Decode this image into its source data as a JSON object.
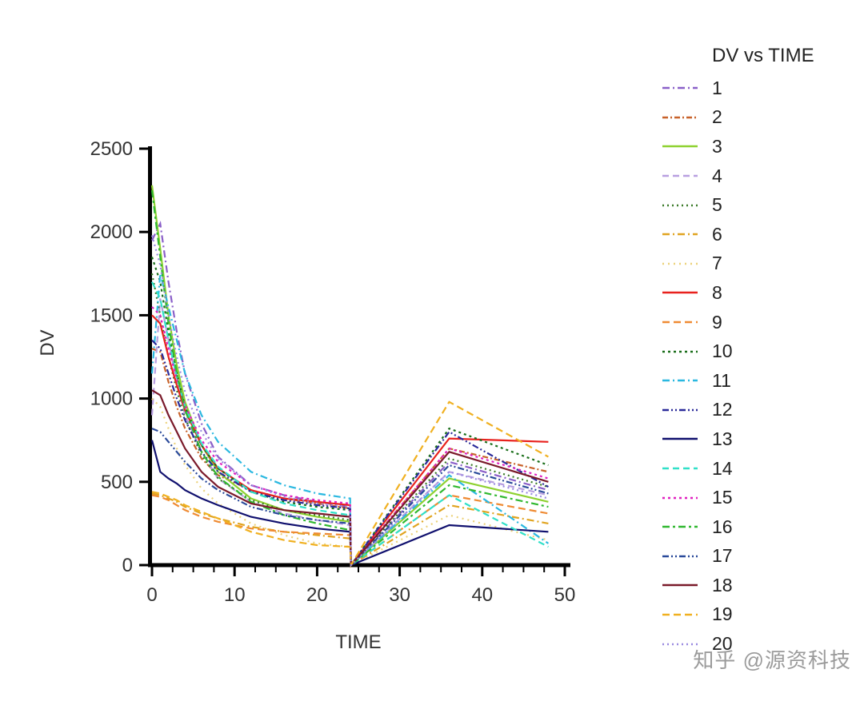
{
  "watermark": {
    "text": "知乎 @源资科技"
  },
  "chart_data": {
    "type": "line",
    "title": "DV vs TIME",
    "xlabel": "TIME",
    "ylabel": "DV",
    "xlim": [
      0,
      50
    ],
    "ylim": [
      0,
      2500
    ],
    "x_ticks": [
      0,
      10,
      20,
      30,
      40,
      50
    ],
    "y_ticks": [
      0,
      500,
      1000,
      1500,
      2000,
      2500
    ],
    "x_minor_step": 2.5,
    "grid": false,
    "legend_position": "right",
    "x": [
      0,
      1,
      2,
      3,
      4,
      6,
      8,
      12,
      16,
      20,
      24,
      24.1,
      36,
      48
    ],
    "series": [
      {
        "name": "1",
        "color": "#8a5fc8",
        "dash": "9 4 2 4",
        "values": [
          1950,
          2050,
          1700,
          1400,
          1150,
          850,
          650,
          480,
          420,
          380,
          350,
          0,
          620,
          450
        ]
      },
      {
        "name": "2",
        "color": "#c8622a",
        "dash": "7 3 2 3",
        "values": [
          1300,
          1280,
          1100,
          950,
          820,
          640,
          540,
          450,
          400,
          370,
          340,
          0,
          700,
          560
        ]
      },
      {
        "name": "3",
        "color": "#8ed130",
        "dash": "",
        "values": [
          2280,
          1900,
          1500,
          1200,
          980,
          720,
          560,
          400,
          330,
          290,
          260,
          0,
          520,
          380
        ]
      },
      {
        "name": "4",
        "color": "#b89fe0",
        "dash": "8 5",
        "values": [
          900,
          1600,
          1350,
          1100,
          900,
          680,
          520,
          380,
          310,
          270,
          240,
          0,
          560,
          420
        ]
      },
      {
        "name": "5",
        "color": "#3a7a28",
        "dash": "2 4",
        "values": [
          1750,
          1500,
          1250,
          1050,
          880,
          660,
          520,
          390,
          330,
          300,
          270,
          0,
          640,
          470
        ]
      },
      {
        "name": "6",
        "color": "#e0a420",
        "dash": "9 4 2 4",
        "values": [
          430,
          420,
          400,
          380,
          350,
          310,
          280,
          230,
          200,
          180,
          160,
          0,
          360,
          250
        ]
      },
      {
        "name": "7",
        "color": "#ecd27a",
        "dash": "2 5",
        "values": [
          1000,
          950,
          820,
          700,
          600,
          460,
          370,
          250,
          180,
          130,
          110,
          0,
          300,
          150
        ]
      },
      {
        "name": "8",
        "color": "#e8211d",
        "dash": "",
        "values": [
          1500,
          1450,
          1250,
          1080,
          930,
          720,
          580,
          450,
          400,
          380,
          360,
          0,
          760,
          740
        ]
      },
      {
        "name": "9",
        "color": "#ef8b33",
        "dash": "9 5",
        "values": [
          420,
          410,
          390,
          360,
          330,
          290,
          260,
          220,
          200,
          190,
          180,
          0,
          420,
          310
        ]
      },
      {
        "name": "10",
        "color": "#1a6e1a",
        "dash": "3 4",
        "values": [
          1850,
          1700,
          1400,
          1150,
          950,
          720,
          580,
          440,
          380,
          350,
          330,
          0,
          820,
          600
        ]
      },
      {
        "name": "11",
        "color": "#2ab8e0",
        "dash": "9 4 2 4",
        "values": [
          1150,
          1750,
          1550,
          1350,
          1150,
          900,
          740,
          560,
          480,
          430,
          400,
          0,
          540,
          130
        ]
      },
      {
        "name": "12",
        "color": "#2a2a9a",
        "dash": "8 3 2 3 2 3",
        "values": [
          1350,
          1300,
          1150,
          1000,
          870,
          680,
          560,
          440,
          390,
          360,
          340,
          0,
          800,
          470
        ]
      },
      {
        "name": "13",
        "color": "#10106e",
        "dash": "",
        "values": [
          750,
          560,
          520,
          490,
          450,
          400,
          360,
          290,
          250,
          220,
          200,
          0,
          240,
          200
        ]
      },
      {
        "name": "14",
        "color": "#30e0c8",
        "dash": "8 5",
        "values": [
          1700,
          1600,
          1350,
          1130,
          950,
          730,
          590,
          440,
          370,
          330,
          300,
          0,
          420,
          110
        ]
      },
      {
        "name": "15",
        "color": "#e020c0",
        "dash": "3 4",
        "values": [
          1550,
          1500,
          1300,
          1120,
          960,
          750,
          620,
          480,
          420,
          390,
          370,
          0,
          700,
          520
        ]
      },
      {
        "name": "16",
        "color": "#30b830",
        "dash": "9 4 3 4",
        "values": [
          2250,
          1850,
          1450,
          1150,
          930,
          680,
          530,
          380,
          300,
          250,
          210,
          0,
          480,
          350
        ]
      },
      {
        "name": "17",
        "color": "#2a4a9a",
        "dash": "8 3 2 3 2 3",
        "values": [
          820,
          800,
          740,
          680,
          620,
          520,
          450,
          350,
          300,
          270,
          250,
          0,
          600,
          430
        ]
      },
      {
        "name": "18",
        "color": "#7a1a2a",
        "dash": "",
        "values": [
          1050,
          1020,
          900,
          800,
          700,
          560,
          470,
          370,
          330,
          310,
          290,
          0,
          680,
          500
        ]
      },
      {
        "name": "19",
        "color": "#f0b020",
        "dash": "9 5",
        "values": [
          440,
          430,
          410,
          390,
          360,
          320,
          280,
          200,
          150,
          120,
          110,
          0,
          980,
          650
        ]
      },
      {
        "name": "20",
        "color": "#9a8ae0",
        "dash": "2 4",
        "values": [
          1980,
          1800,
          1500,
          1250,
          1040,
          800,
          640,
          480,
          410,
          370,
          350,
          0,
          560,
          400
        ]
      }
    ]
  }
}
